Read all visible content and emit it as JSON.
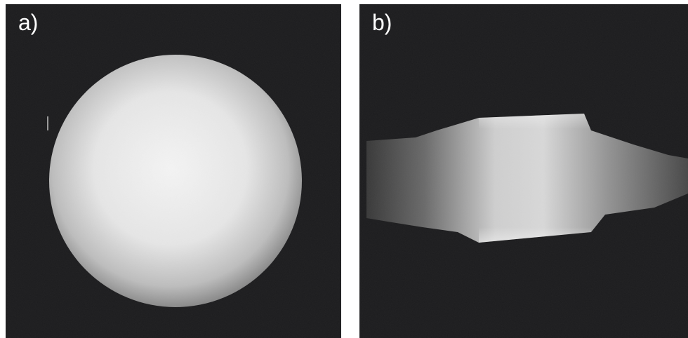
{
  "figure": {
    "panels": [
      {
        "id": "a",
        "label": "a)"
      },
      {
        "id": "b",
        "label": "b)"
      }
    ],
    "background_color": "#1c1c1e",
    "signal_color": "#f2f2f2"
  }
}
